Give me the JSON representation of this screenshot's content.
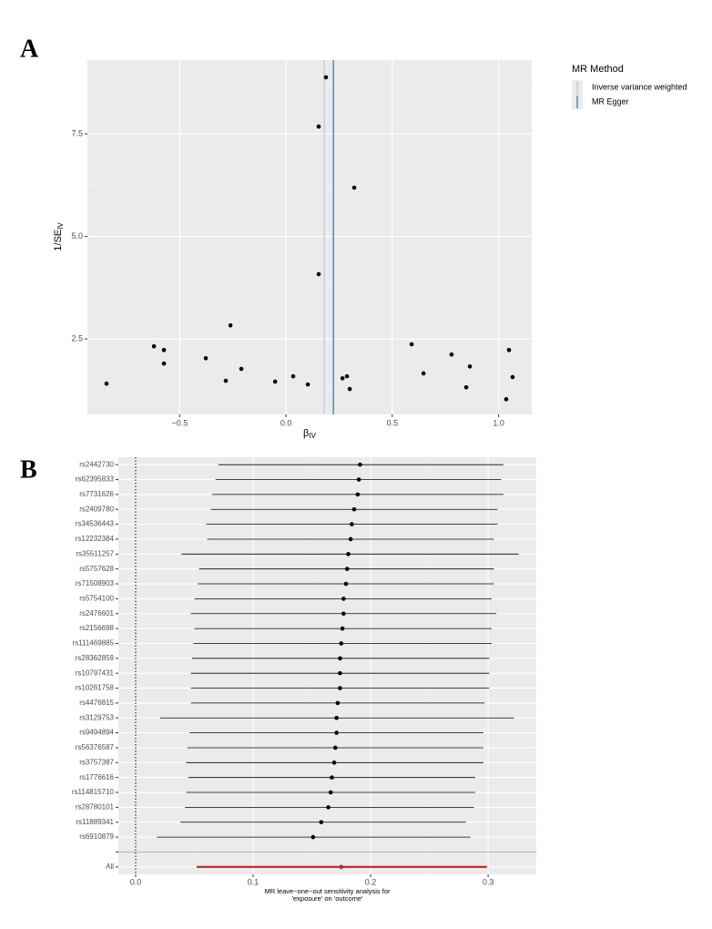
{
  "chart_data": [
    {
      "type": "scatter",
      "panel": "A",
      "x": [
        -0.844,
        -0.621,
        -0.574,
        -0.574,
        -0.377,
        -0.283,
        -0.261,
        -0.21,
        -0.051,
        0.034,
        0.103,
        0.154,
        0.154,
        0.188,
        0.266,
        0.287,
        0.3,
        0.321,
        0.591,
        0.647,
        0.779,
        0.848,
        0.865,
        1.036,
        1.049,
        1.066
      ],
      "values": [
        1.41,
        2.32,
        2.23,
        1.9,
        2.03,
        1.48,
        2.83,
        1.77,
        1.46,
        1.59,
        1.39,
        7.68,
        4.08,
        8.88,
        1.54,
        1.59,
        1.28,
        6.19,
        2.37,
        1.66,
        2.12,
        1.32,
        1.83,
        1.03,
        2.23,
        1.57
      ],
      "color": "#000000",
      "lines": [
        {
          "name": "Inverse variance weighted",
          "value": 0.18,
          "color": "#a6cee3"
        },
        {
          "name": "MR Egger",
          "value": 0.223,
          "color": "#1f78b4"
        }
      ],
      "legend_title": "MR Method",
      "xlabel": "β",
      "xlabel_sub": "IV",
      "ylabel": "1/SE",
      "ylabel_sub": "IV",
      "xlim": [
        -0.934,
        1.156
      ],
      "xticks": [
        {
          "value": -0.5,
          "label": "−0.5"
        },
        {
          "value": 0,
          "label": "0.0"
        },
        0.5,
        {
          "value": 1,
          "label": "1.0"
        }
      ],
      "ylim": [
        0.66,
        9.3
      ],
      "yticks": [
        2.5,
        {
          "value": 5,
          "label": "5.0"
        },
        7.5
      ],
      "grid": true
    },
    {
      "type": "forest",
      "panel": "B",
      "categories": [
        "rs2442730",
        "rs62395833",
        "rs7731626",
        "rs2409780",
        "rs34536443",
        "rs12232384",
        "rs35511257",
        "rs5757628",
        "rs71508903",
        "rs5754100",
        "rs2476601",
        "rs2156698",
        "rs111469885",
        "rs28362859",
        "rs10797431",
        "rs10261758",
        "rs4476815",
        "rs3129753",
        "rs9494894",
        "rs56376587",
        "rs3757387",
        "rs1776616",
        "rs114815710",
        "rs28780101",
        "rs11889341",
        "rs6910879",
        null,
        "All"
      ],
      "values": [
        0.191,
        0.19,
        0.189,
        0.186,
        0.184,
        0.183,
        0.181,
        0.18,
        0.179,
        0.177,
        0.177,
        0.176,
        0.175,
        0.174,
        0.174,
        0.174,
        0.172,
        0.171,
        0.171,
        0.17,
        0.169,
        0.167,
        0.166,
        0.164,
        0.158,
        0.151,
        null,
        0.175
      ],
      "lower": [
        0.0705,
        0.068,
        0.065,
        0.064,
        0.06,
        0.061,
        0.039,
        0.054,
        0.053,
        0.05,
        0.047,
        0.05,
        0.049,
        0.048,
        0.047,
        0.047,
        0.047,
        0.021,
        0.046,
        0.044,
        0.043,
        0.045,
        0.043,
        0.042,
        0.038,
        0.018,
        null,
        0.052
      ],
      "upper": [
        0.313,
        0.311,
        0.313,
        0.308,
        0.308,
        0.305,
        0.326,
        0.305,
        0.305,
        0.303,
        0.307,
        0.303,
        0.303,
        0.301,
        0.301,
        0.301,
        0.297,
        0.322,
        0.296,
        0.296,
        0.296,
        0.289,
        0.289,
        0.288,
        0.281,
        0.285,
        null,
        0.299
      ],
      "color": "#000000",
      "summary_color": "#cc1f1f",
      "reference_line": 0,
      "xlabel": [
        "MR leave−one−out sensitivity analysis for",
        "'exposure' on 'outcome'"
      ],
      "xlim": [
        -0.0147,
        0.341
      ],
      "xticks": [
        {
          "value": 0,
          "label": "0.0"
        },
        0.1,
        0.2,
        0.3
      ],
      "grid": true
    }
  ]
}
